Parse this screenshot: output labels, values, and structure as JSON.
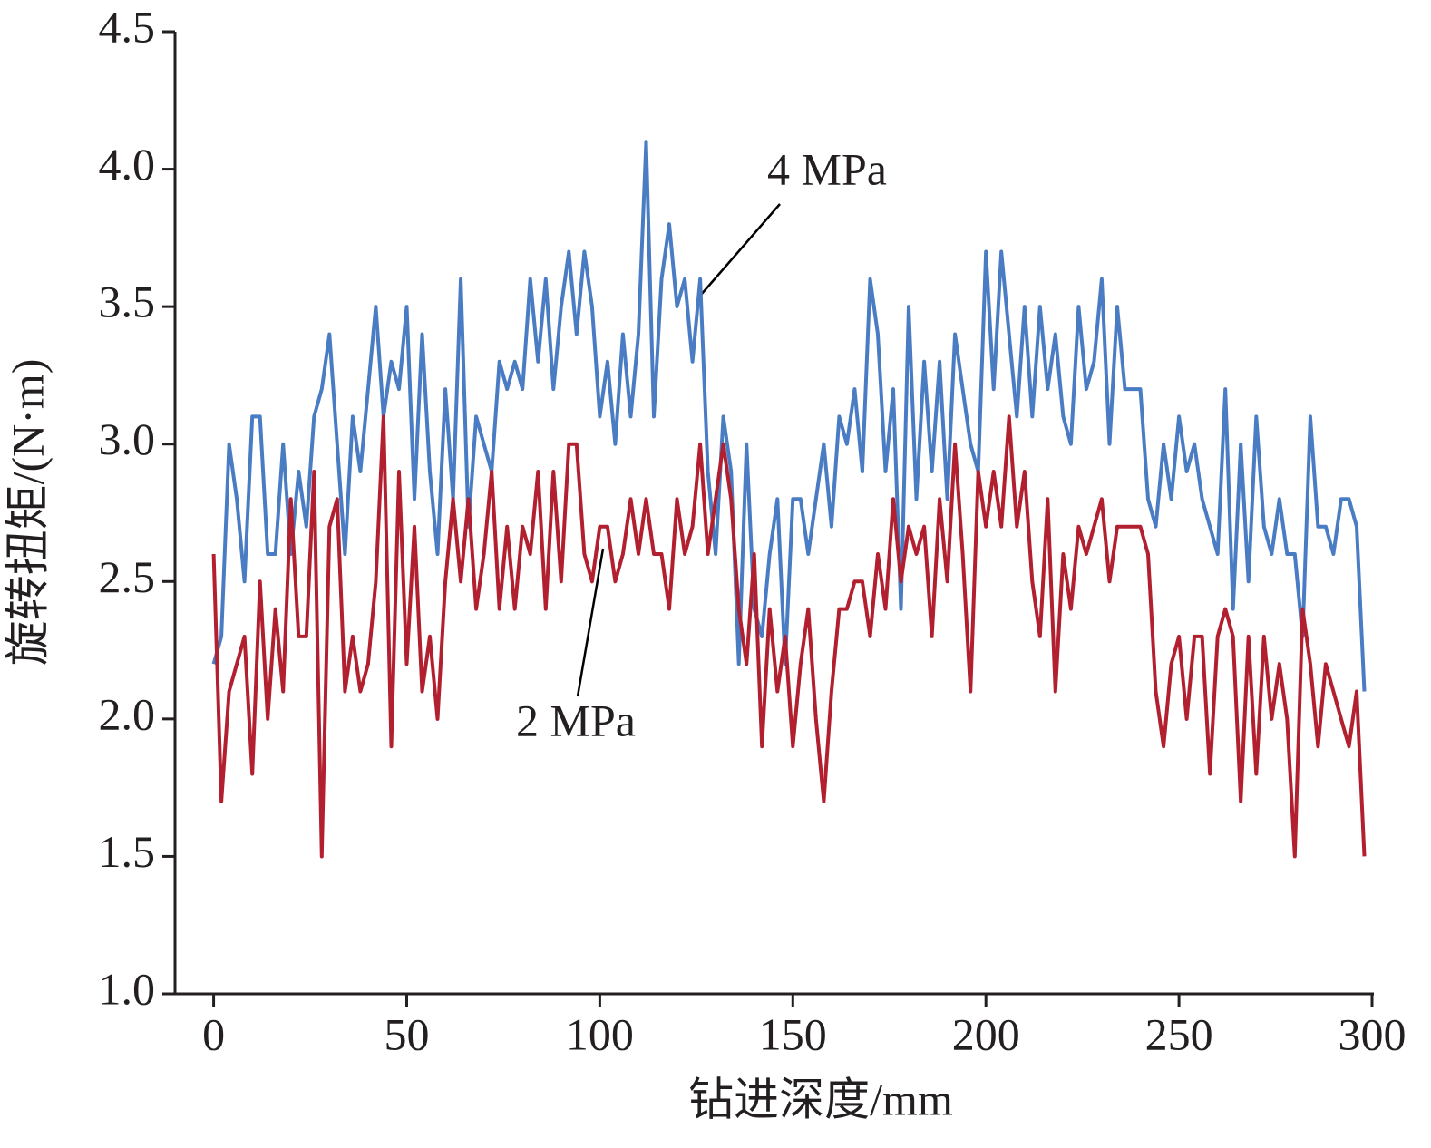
{
  "chart_data": {
    "type": "line",
    "x_label": "钻进深度/mm",
    "y_label": "旋转扭矩/(N·m)",
    "annotations": [
      "4 MPa",
      "2 MPa"
    ],
    "x": [
      0,
      2,
      4,
      6,
      8,
      10,
      12,
      14,
      16,
      18,
      20,
      22,
      24,
      26,
      28,
      30,
      32,
      34,
      36,
      38,
      40,
      42,
      44,
      46,
      48,
      50,
      52,
      54,
      56,
      58,
      60,
      62,
      64,
      66,
      68,
      70,
      72,
      74,
      76,
      78,
      80,
      82,
      84,
      86,
      88,
      90,
      92,
      94,
      96,
      98,
      100,
      102,
      104,
      106,
      108,
      110,
      112,
      114,
      116,
      118,
      120,
      122,
      124,
      126,
      128,
      130,
      132,
      134,
      136,
      138,
      140,
      142,
      144,
      146,
      148,
      150,
      152,
      154,
      156,
      158,
      160,
      162,
      164,
      166,
      168,
      170,
      172,
      174,
      176,
      178,
      180,
      182,
      184,
      186,
      188,
      190,
      192,
      194,
      196,
      198,
      200,
      202,
      204,
      206,
      208,
      210,
      212,
      214,
      216,
      218,
      220,
      222,
      224,
      226,
      228,
      230,
      232,
      234,
      236,
      238,
      240,
      242,
      244,
      246,
      248,
      250,
      252,
      254,
      256,
      258,
      260,
      262,
      264,
      266,
      268,
      270,
      272,
      274,
      276,
      278,
      280,
      282,
      284,
      286,
      288,
      290,
      292,
      294,
      296,
      298
    ],
    "series": [
      {
        "name": "4 MPa",
        "color": "#4a7cc4",
        "values": [
          2.2,
          2.3,
          3.0,
          2.8,
          2.5,
          3.1,
          3.1,
          2.6,
          2.6,
          3.0,
          2.6,
          2.9,
          2.7,
          3.1,
          3.2,
          3.4,
          3.0,
          2.6,
          3.1,
          2.9,
          3.2,
          3.5,
          3.1,
          3.3,
          3.2,
          3.5,
          2.8,
          3.4,
          2.9,
          2.6,
          3.2,
          2.8,
          3.6,
          2.7,
          3.1,
          3.0,
          2.9,
          3.3,
          3.2,
          3.3,
          3.2,
          3.6,
          3.3,
          3.6,
          3.2,
          3.5,
          3.7,
          3.4,
          3.7,
          3.5,
          3.1,
          3.3,
          3.0,
          3.4,
          3.1,
          3.4,
          4.1,
          3.1,
          3.6,
          3.8,
          3.5,
          3.6,
          3.3,
          3.6,
          2.9,
          2.6,
          3.1,
          2.9,
          2.2,
          3.0,
          2.4,
          2.3,
          2.6,
          2.8,
          2.2,
          2.8,
          2.8,
          2.6,
          2.8,
          3.0,
          2.7,
          3.1,
          3.0,
          3.2,
          2.9,
          3.6,
          3.4,
          2.9,
          3.2,
          2.4,
          3.5,
          2.8,
          3.3,
          2.9,
          3.3,
          2.8,
          3.4,
          3.2,
          3.0,
          2.9,
          3.7,
          3.2,
          3.7,
          3.4,
          3.1,
          3.5,
          3.1,
          3.5,
          3.2,
          3.4,
          3.1,
          3.0,
          3.5,
          3.2,
          3.3,
          3.6,
          3.0,
          3.5,
          3.2,
          3.2,
          3.2,
          2.8,
          2.7,
          3.0,
          2.8,
          3.1,
          2.9,
          3.0,
          2.8,
          2.7,
          2.6,
          3.2,
          2.4,
          3.0,
          2.5,
          3.1,
          2.7,
          2.6,
          2.8,
          2.6,
          2.6,
          2.3,
          3.1,
          2.7,
          2.7,
          2.6,
          2.8,
          2.8,
          2.7,
          2.1
        ]
      },
      {
        "name": "2 MPa",
        "color": "#b22030",
        "values": [
          2.6,
          1.7,
          2.1,
          2.2,
          2.3,
          1.8,
          2.5,
          2.0,
          2.4,
          2.1,
          2.8,
          2.3,
          2.3,
          2.9,
          1.5,
          2.7,
          2.8,
          2.1,
          2.3,
          2.1,
          2.2,
          2.5,
          3.1,
          1.9,
          2.9,
          2.2,
          2.7,
          2.1,
          2.3,
          2.0,
          2.5,
          2.8,
          2.5,
          2.8,
          2.4,
          2.6,
          2.9,
          2.4,
          2.7,
          2.4,
          2.7,
          2.6,
          2.9,
          2.4,
          2.9,
          2.5,
          3.0,
          3.0,
          2.6,
          2.5,
          2.7,
          2.7,
          2.5,
          2.6,
          2.8,
          2.6,
          2.8,
          2.6,
          2.6,
          2.4,
          2.8,
          2.6,
          2.7,
          3.0,
          2.6,
          2.8,
          3.0,
          2.8,
          2.4,
          2.2,
          2.6,
          1.9,
          2.4,
          2.1,
          2.3,
          1.9,
          2.2,
          2.4,
          2.0,
          1.7,
          2.1,
          2.4,
          2.4,
          2.5,
          2.5,
          2.3,
          2.6,
          2.4,
          2.8,
          2.5,
          2.7,
          2.6,
          2.7,
          2.3,
          2.8,
          2.5,
          3.0,
          2.6,
          2.1,
          2.9,
          2.7,
          2.9,
          2.7,
          3.1,
          2.7,
          2.9,
          2.5,
          2.3,
          2.8,
          2.1,
          2.6,
          2.4,
          2.7,
          2.6,
          2.7,
          2.8,
          2.5,
          2.7,
          2.7,
          2.7,
          2.7,
          2.6,
          2.1,
          1.9,
          2.2,
          2.3,
          2.0,
          2.3,
          2.3,
          1.8,
          2.3,
          2.4,
          2.3,
          1.7,
          2.3,
          1.8,
          2.3,
          2.0,
          2.2,
          2.0,
          1.5,
          2.4,
          2.2,
          1.9,
          2.2,
          2.1,
          2.0,
          1.9,
          2.1,
          1.5
        ]
      }
    ],
    "xlim": [
      -10,
      300
    ],
    "xticks": [
      0,
      50,
      100,
      150,
      200,
      250,
      300
    ],
    "ylim": [
      1.0,
      4.5
    ],
    "yticks": [
      {
        "value": 1.0,
        "label": "1.0"
      },
      1.5,
      {
        "value": 2.0,
        "label": "2.0"
      },
      2.5,
      {
        "value": 3.0,
        "label": "3.0"
      },
      3.5,
      {
        "value": 4.0,
        "label": "4.0"
      },
      4.5
    ]
  }
}
